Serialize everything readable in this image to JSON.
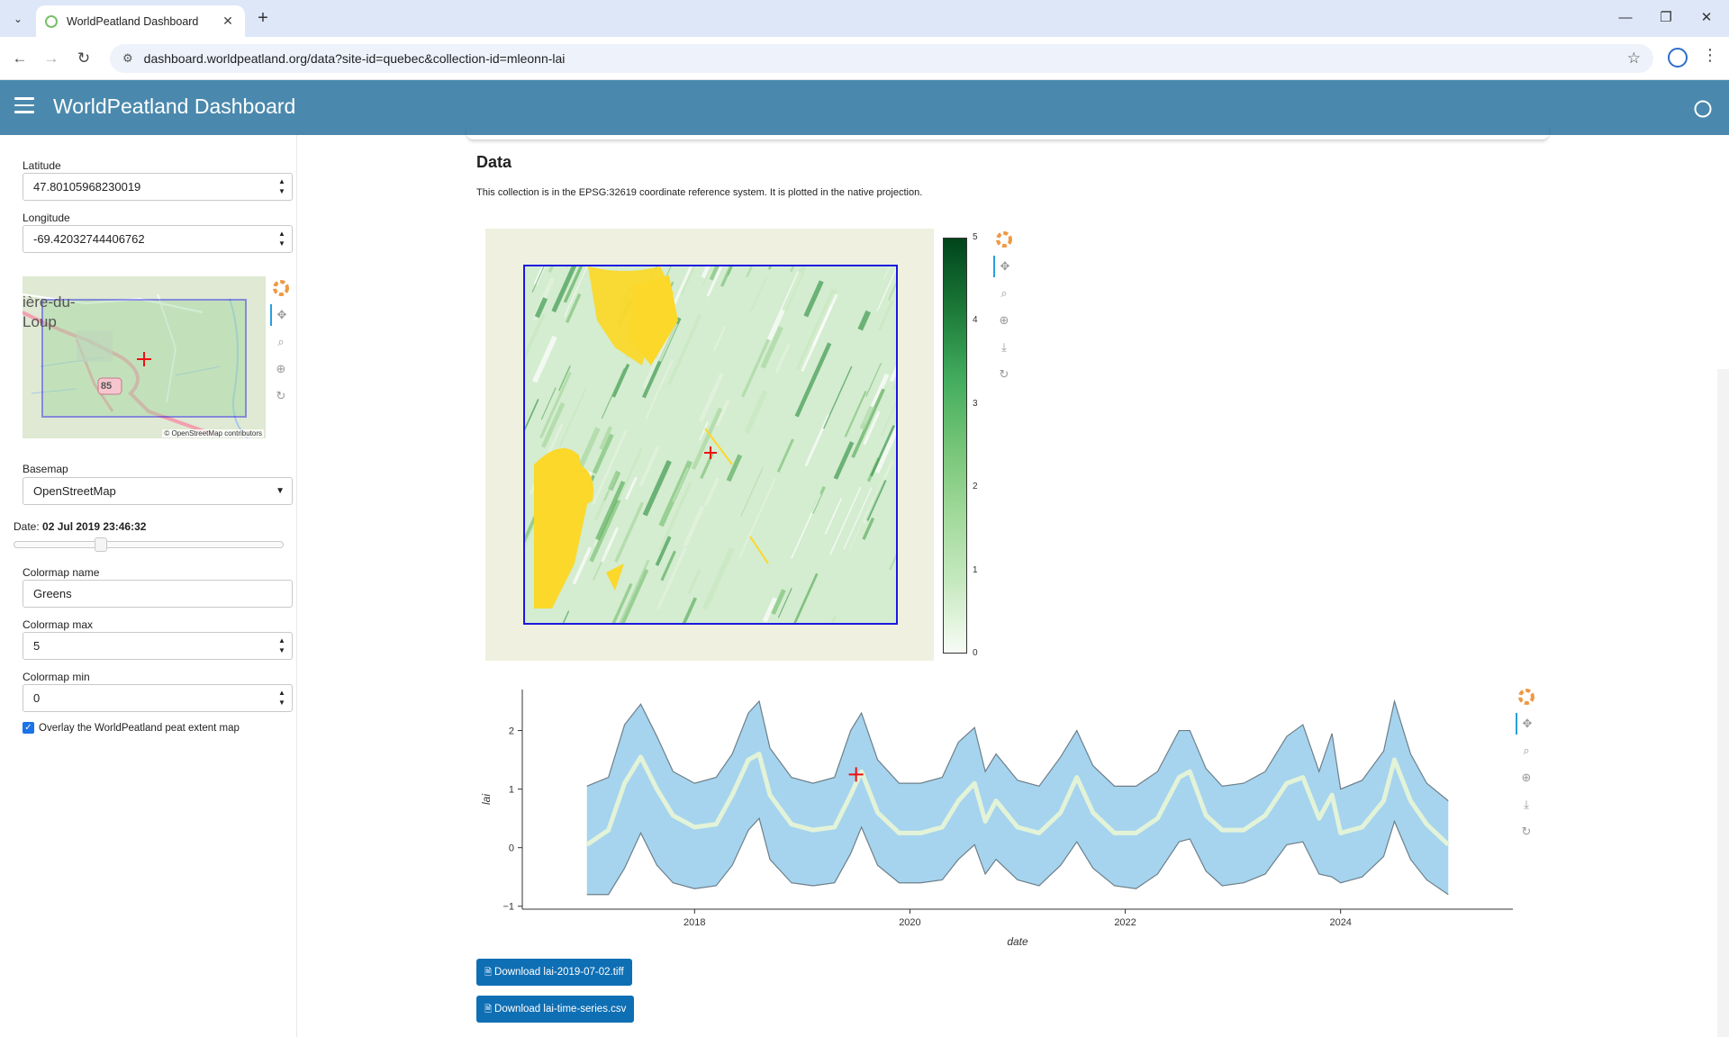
{
  "browser": {
    "tab_title": "WorldPeatland Dashboard",
    "url": "dashboard.worldpeatland.org/data?site-id=quebec&collection-id=mleonn-lai"
  },
  "header": {
    "title": "WorldPeatland Dashboard"
  },
  "sidebar": {
    "latitude_label": "Latitude",
    "latitude_value": "47.80105968230019",
    "longitude_label": "Longitude",
    "longitude_value": "-69.42032744406762",
    "minimap": {
      "place_label_line1": "ière-du-",
      "place_label_line2": "Loup",
      "road_shield": "85",
      "attribution_prefix": "© OpenStreetMap",
      "attribution_suffix": " contributors"
    },
    "basemap_label": "Basemap",
    "basemap_value": "OpenStreetMap",
    "date_label": "Date:",
    "date_value": "02 Jul 2019 23:46:32",
    "date_slider_position": 0.31,
    "colormap_name_label": "Colormap name",
    "colormap_name_value": "Greens",
    "colormap_max_label": "Colormap max",
    "colormap_max_value": "5",
    "colormap_min_label": "Colormap min",
    "colormap_min_value": "0",
    "overlay_label": "Overlay the WorldPeatland peat extent map",
    "overlay_checked": true
  },
  "main": {
    "section_title": "Data",
    "description": "This collection is in the EPSG:32619 coordinate reference system. It is plotted in the native projection.",
    "download_tiff_label": "Download lai-2019-07-02.tiff",
    "download_csv_label": "Download lai-time-series.csv"
  },
  "chart_data": [
    {
      "type": "heatmap",
      "colormap": "Greens",
      "colorbar": {
        "ticks": [
          "0",
          "1",
          "2",
          "3",
          "4",
          "5"
        ],
        "range": [
          0,
          5
        ]
      }
    },
    {
      "type": "line",
      "xlabel": "date",
      "ylabel": "lai",
      "x_ticks": [
        "2018",
        "2020",
        "2022",
        "2024"
      ],
      "y_ticks": [
        "−1",
        "0",
        "1",
        "2"
      ],
      "ylim": [
        -1.05,
        2.7
      ],
      "xlim": [
        2016.4,
        2025.6
      ],
      "x": [
        2017.0,
        2017.2,
        2017.35,
        2017.5,
        2017.65,
        2017.8,
        2018.0,
        2018.2,
        2018.35,
        2018.5,
        2018.6,
        2018.7,
        2018.9,
        2019.1,
        2019.3,
        2019.45,
        2019.55,
        2019.7,
        2019.9,
        2020.1,
        2020.3,
        2020.45,
        2020.6,
        2020.7,
        2020.8,
        2021.0,
        2021.2,
        2021.4,
        2021.55,
        2021.7,
        2021.9,
        2022.1,
        2022.3,
        2022.5,
        2022.6,
        2022.75,
        2022.9,
        2023.1,
        2023.3,
        2023.5,
        2023.65,
        2023.8,
        2023.92,
        2024.0,
        2024.2,
        2024.4,
        2024.5,
        2024.65,
        2024.8,
        2025.0
      ],
      "series": [
        {
          "values": [
            0.05,
            0.3,
            1.1,
            1.55,
            1.0,
            0.55,
            0.35,
            0.4,
            0.9,
            1.5,
            1.6,
            0.9,
            0.4,
            0.3,
            0.35,
            0.9,
            1.3,
            0.6,
            0.25,
            0.25,
            0.35,
            0.8,
            1.1,
            0.45,
            0.8,
            0.35,
            0.25,
            0.6,
            1.2,
            0.6,
            0.25,
            0.25,
            0.5,
            1.2,
            1.3,
            0.55,
            0.3,
            0.3,
            0.55,
            1.1,
            1.2,
            0.5,
            0.9,
            0.25,
            0.35,
            0.8,
            1.5,
            0.8,
            0.4,
            0.05
          ]
        },
        {
          "values": [
            1.05,
            1.2,
            2.1,
            2.45,
            1.9,
            1.3,
            1.1,
            1.2,
            1.6,
            2.3,
            2.5,
            1.7,
            1.2,
            1.1,
            1.2,
            2.0,
            2.3,
            1.5,
            1.1,
            1.1,
            1.2,
            1.8,
            2.05,
            1.3,
            1.6,
            1.15,
            1.05,
            1.55,
            2.0,
            1.4,
            1.05,
            1.05,
            1.3,
            2.0,
            2.0,
            1.35,
            1.05,
            1.1,
            1.3,
            1.9,
            2.1,
            1.3,
            1.95,
            1.0,
            1.15,
            1.65,
            2.5,
            1.6,
            1.1,
            0.8
          ]
        },
        {
          "values": [
            -0.8,
            -0.8,
            -0.35,
            0.25,
            -0.3,
            -0.6,
            -0.7,
            -0.65,
            -0.3,
            0.3,
            0.5,
            -0.2,
            -0.6,
            -0.65,
            -0.6,
            -0.1,
            0.35,
            -0.3,
            -0.6,
            -0.6,
            -0.55,
            -0.2,
            0.05,
            -0.45,
            -0.2,
            -0.55,
            -0.65,
            -0.3,
            0.1,
            -0.35,
            -0.65,
            -0.7,
            -0.45,
            0.1,
            0.15,
            -0.4,
            -0.65,
            -0.6,
            -0.45,
            0.05,
            0.1,
            -0.45,
            -0.5,
            -0.6,
            -0.5,
            -0.15,
            0.45,
            -0.2,
            -0.55,
            -0.8
          ]
        }
      ],
      "marker": {
        "x": 2019.5,
        "y": 1.25
      }
    }
  ]
}
